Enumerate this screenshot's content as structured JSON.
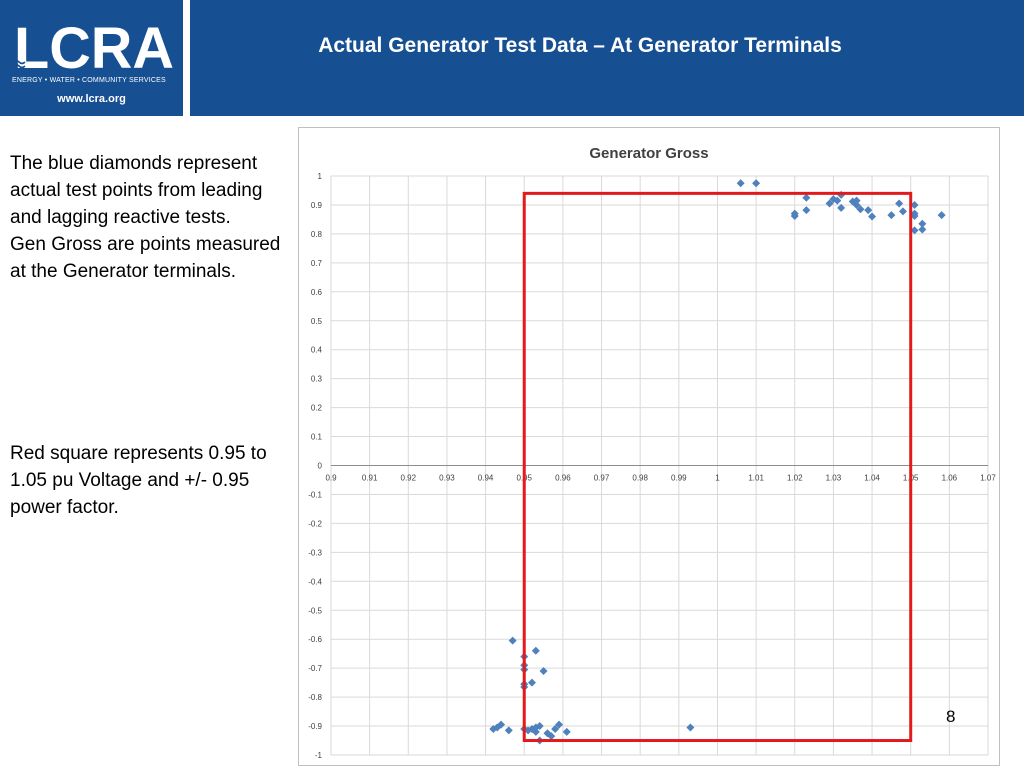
{
  "header": {
    "title": "Actual Generator Test  Data – At Generator Terminals",
    "logo_text": "LCRA",
    "logo_tagline": "ENERGY • WATER • COMMUNITY SERVICES",
    "url": "www.lcra.org",
    "background_color": "#174f93"
  },
  "body_text": {
    "paragraph1_line1": "The blue diamonds represent actual test points from leading and lagging reactive tests.",
    "paragraph1_line2": "Gen Gross are points measured at the Generator terminals.",
    "paragraph2": "Red square represents 0.95 to 1.05 pu Voltage and +/- 0.95 power factor."
  },
  "page_number": "8",
  "chart_data": {
    "type": "scatter",
    "title": "Generator Gross",
    "xlabel": "",
    "ylabel": "",
    "xlim": [
      0.9,
      1.07
    ],
    "ylim": [
      -1,
      1
    ],
    "x_ticks": [
      "0.9",
      "0.91",
      "0.92",
      "0.93",
      "0.94",
      "0.95",
      "0.96",
      "0.97",
      "0.98",
      "0.99",
      "1",
      "1.01",
      "1.02",
      "1.03",
      "1.04",
      "1.05",
      "1.06",
      "1.07"
    ],
    "y_ticks": [
      "1",
      "0.9",
      "0.8",
      "0.7",
      "0.6",
      "0.5",
      "0.4",
      "0.3",
      "0.2",
      "0.1",
      "0",
      "-0.1",
      "-0.2",
      "-0.3",
      "-0.4",
      "-0.5",
      "-0.6",
      "-0.7",
      "-0.8",
      "-0.9",
      "-1"
    ],
    "grid": true,
    "marker_color": "#4f81bd",
    "marker": "diamond",
    "series": [
      {
        "points": [
          [
            1.006,
            0.975
          ],
          [
            1.01,
            0.975
          ],
          [
            1.02,
            0.87
          ],
          [
            1.02,
            0.862
          ],
          [
            1.023,
            0.882
          ],
          [
            1.023,
            0.925
          ],
          [
            1.029,
            0.905
          ],
          [
            1.03,
            0.92
          ],
          [
            1.031,
            0.915
          ],
          [
            1.032,
            0.935
          ],
          [
            1.032,
            0.89
          ],
          [
            1.035,
            0.912
          ],
          [
            1.036,
            0.915
          ],
          [
            1.036,
            0.9
          ],
          [
            1.037,
            0.885
          ],
          [
            1.039,
            0.882
          ],
          [
            1.04,
            0.86
          ],
          [
            1.045,
            0.865
          ],
          [
            1.047,
            0.905
          ],
          [
            1.048,
            0.878
          ],
          [
            1.051,
            0.9
          ],
          [
            1.051,
            0.87
          ],
          [
            1.051,
            0.862
          ],
          [
            1.051,
            0.812
          ],
          [
            1.053,
            0.835
          ],
          [
            1.053,
            0.815
          ],
          [
            1.058,
            0.865
          ],
          [
            0.947,
            -0.605
          ],
          [
            0.953,
            -0.64
          ],
          [
            0.95,
            -0.66
          ],
          [
            0.95,
            -0.69
          ],
          [
            0.95,
            -0.705
          ],
          [
            0.95,
            -0.755
          ],
          [
            0.95,
            -0.765
          ],
          [
            0.955,
            -0.71
          ],
          [
            0.952,
            -0.75
          ],
          [
            0.942,
            -0.91
          ],
          [
            0.943,
            -0.905
          ],
          [
            0.944,
            -0.895
          ],
          [
            0.946,
            -0.915
          ],
          [
            0.95,
            -0.91
          ],
          [
            0.951,
            -0.915
          ],
          [
            0.952,
            -0.91
          ],
          [
            0.953,
            -0.905
          ],
          [
            0.953,
            -0.92
          ],
          [
            0.954,
            -0.9
          ],
          [
            0.954,
            -0.95
          ],
          [
            0.956,
            -0.925
          ],
          [
            0.957,
            -0.935
          ],
          [
            0.958,
            -0.91
          ],
          [
            0.959,
            -0.895
          ],
          [
            0.961,
            -0.92
          ],
          [
            0.993,
            -0.905
          ]
        ]
      }
    ],
    "annotations": [
      {
        "shape": "rectangle",
        "color": "#e31a1c",
        "x_range": [
          0.95,
          1.05
        ],
        "y_range": [
          -0.95,
          0.94
        ]
      }
    ]
  }
}
